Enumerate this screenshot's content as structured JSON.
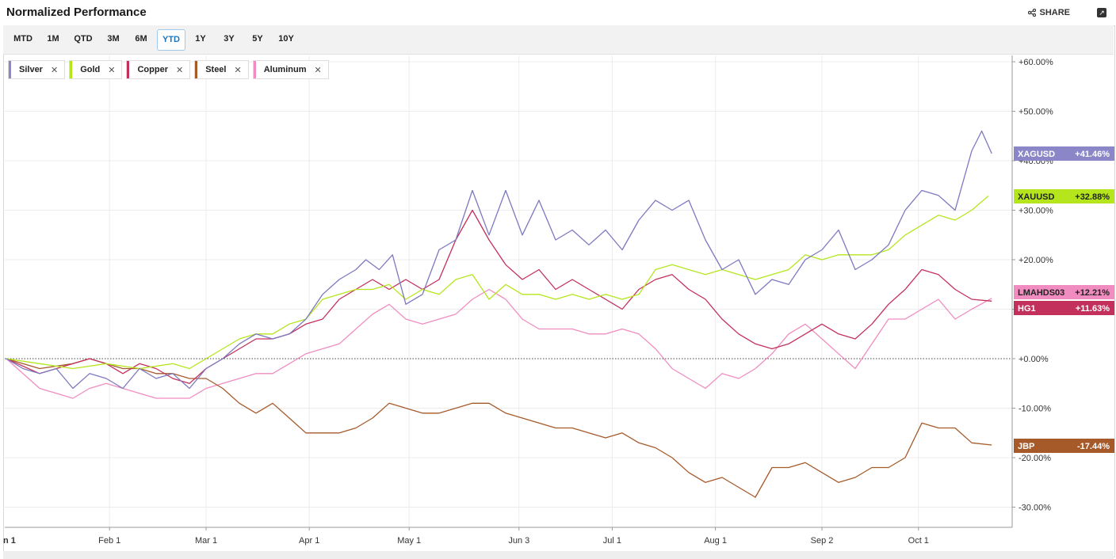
{
  "header": {
    "title": "Normalized Performance",
    "share_label": "SHARE"
  },
  "tabs": [
    {
      "label": "MTD",
      "active": false
    },
    {
      "label": "1M",
      "active": false
    },
    {
      "label": "QTD",
      "active": false
    },
    {
      "label": "3M",
      "active": false
    },
    {
      "label": "6M",
      "active": false
    },
    {
      "label": "YTD",
      "active": true
    },
    {
      "label": "1Y",
      "active": false
    },
    {
      "label": "3Y",
      "active": false
    },
    {
      "label": "5Y",
      "active": false
    },
    {
      "label": "10Y",
      "active": false
    }
  ],
  "legend": [
    {
      "name": "Silver",
      "color": "#8a86c8"
    },
    {
      "name": "Gold",
      "color": "#b5e61d"
    },
    {
      "name": "Copper",
      "color": "#c3305c"
    },
    {
      "name": "Steel",
      "color": "#a65a2a"
    },
    {
      "name": "Aluminum",
      "color": "#f08cc0"
    }
  ],
  "chart_data": {
    "type": "line",
    "y_unit": "%",
    "ylim": [
      -33,
      62
    ],
    "yticks": [
      60,
      50,
      40,
      30,
      20,
      10,
      0,
      -10,
      -20,
      -30
    ],
    "ytick_labels": [
      "+60.00%",
      "+50.00%",
      "+40.00%",
      "+30.00%",
      "+20.00%",
      "+10.00%",
      "+0.00%",
      "-10.00%",
      "-20.00%",
      "-30.00%"
    ],
    "x_tick_labels": [
      "n 1",
      "Feb 1",
      "Mar 1",
      "Apr 1",
      "May 1",
      "Jun 3",
      "Jul 1",
      "Aug 1",
      "Sep 2",
      "Oct 1"
    ],
    "x_tick_days": [
      0,
      31,
      60,
      91,
      121,
      154,
      182,
      213,
      245,
      274
    ],
    "x_end_day": 296,
    "grid": true,
    "series": [
      {
        "name": "Silver",
        "ticker": "XAGUSD",
        "end_label": "+41.46%",
        "color": "#8a86c8",
        "line_color": "#7c78c0",
        "points": [
          [
            0,
            0
          ],
          [
            5,
            -2
          ],
          [
            10,
            -3
          ],
          [
            15,
            -2
          ],
          [
            20,
            -6
          ],
          [
            25,
            -3
          ],
          [
            30,
            -4
          ],
          [
            35,
            -6
          ],
          [
            40,
            -2
          ],
          [
            45,
            -4
          ],
          [
            50,
            -3
          ],
          [
            55,
            -6
          ],
          [
            60,
            -2
          ],
          [
            65,
            0
          ],
          [
            70,
            3
          ],
          [
            75,
            5
          ],
          [
            80,
            4
          ],
          [
            85,
            5
          ],
          [
            90,
            8
          ],
          [
            95,
            13
          ],
          [
            100,
            16
          ],
          [
            105,
            18
          ],
          [
            108,
            20
          ],
          [
            112,
            18
          ],
          [
            116,
            21
          ],
          [
            120,
            11
          ],
          [
            125,
            13
          ],
          [
            130,
            22
          ],
          [
            135,
            24
          ],
          [
            140,
            34
          ],
          [
            145,
            25
          ],
          [
            150,
            34
          ],
          [
            155,
            25
          ],
          [
            160,
            32
          ],
          [
            165,
            24
          ],
          [
            170,
            26
          ],
          [
            175,
            23
          ],
          [
            180,
            26
          ],
          [
            185,
            22
          ],
          [
            190,
            28
          ],
          [
            195,
            32
          ],
          [
            200,
            30
          ],
          [
            205,
            32
          ],
          [
            210,
            24
          ],
          [
            215,
            18
          ],
          [
            220,
            20
          ],
          [
            225,
            13
          ],
          [
            230,
            16
          ],
          [
            235,
            15
          ],
          [
            240,
            20
          ],
          [
            245,
            22
          ],
          [
            250,
            26
          ],
          [
            255,
            18
          ],
          [
            260,
            20
          ],
          [
            265,
            23
          ],
          [
            270,
            30
          ],
          [
            275,
            34
          ],
          [
            280,
            33
          ],
          [
            285,
            30
          ],
          [
            290,
            42
          ],
          [
            293,
            46
          ],
          [
            296,
            41.46
          ]
        ]
      },
      {
        "name": "Gold",
        "ticker": "XAUUSD",
        "end_label": "+32.88%",
        "color": "#b5e61d",
        "line_color": "#b5e61d",
        "points": [
          [
            0,
            0
          ],
          [
            10,
            -1
          ],
          [
            20,
            -2
          ],
          [
            30,
            -1
          ],
          [
            40,
            -2
          ],
          [
            50,
            -1
          ],
          [
            55,
            -2
          ],
          [
            60,
            0
          ],
          [
            65,
            2
          ],
          [
            70,
            4
          ],
          [
            75,
            5
          ],
          [
            80,
            5
          ],
          [
            85,
            7
          ],
          [
            90,
            8
          ],
          [
            95,
            12
          ],
          [
            100,
            13
          ],
          [
            105,
            14
          ],
          [
            110,
            14
          ],
          [
            115,
            15
          ],
          [
            120,
            12
          ],
          [
            125,
            14
          ],
          [
            130,
            13
          ],
          [
            135,
            16
          ],
          [
            140,
            17
          ],
          [
            145,
            12
          ],
          [
            150,
            15
          ],
          [
            155,
            13
          ],
          [
            160,
            13
          ],
          [
            165,
            12
          ],
          [
            170,
            13
          ],
          [
            175,
            12
          ],
          [
            180,
            13
          ],
          [
            185,
            12
          ],
          [
            190,
            13
          ],
          [
            195,
            18
          ],
          [
            200,
            19
          ],
          [
            205,
            18
          ],
          [
            210,
            17
          ],
          [
            215,
            18
          ],
          [
            220,
            17
          ],
          [
            225,
            16
          ],
          [
            230,
            17
          ],
          [
            235,
            18
          ],
          [
            240,
            21
          ],
          [
            245,
            20
          ],
          [
            250,
            21
          ],
          [
            255,
            21
          ],
          [
            260,
            21
          ],
          [
            265,
            22
          ],
          [
            270,
            25
          ],
          [
            275,
            27
          ],
          [
            280,
            29
          ],
          [
            285,
            28
          ],
          [
            290,
            30
          ],
          [
            295,
            32.88
          ]
        ]
      },
      {
        "name": "Copper",
        "ticker": "HG1",
        "end_label": "+11.63%",
        "color": "#c3305c",
        "line_color": "#c3305c",
        "points": [
          [
            0,
            0
          ],
          [
            10,
            -3
          ],
          [
            20,
            -1
          ],
          [
            25,
            0
          ],
          [
            30,
            -1
          ],
          [
            35,
            -3
          ],
          [
            40,
            -1
          ],
          [
            45,
            -2
          ],
          [
            50,
            -4
          ],
          [
            55,
            -5
          ],
          [
            60,
            -2
          ],
          [
            65,
            0
          ],
          [
            70,
            2
          ],
          [
            75,
            4
          ],
          [
            80,
            4
          ],
          [
            85,
            5
          ],
          [
            90,
            7
          ],
          [
            95,
            8
          ],
          [
            100,
            12
          ],
          [
            105,
            14
          ],
          [
            110,
            16
          ],
          [
            115,
            14
          ],
          [
            120,
            16
          ],
          [
            125,
            14
          ],
          [
            130,
            16
          ],
          [
            135,
            24
          ],
          [
            140,
            30
          ],
          [
            145,
            24
          ],
          [
            150,
            19
          ],
          [
            155,
            16
          ],
          [
            160,
            18
          ],
          [
            165,
            14
          ],
          [
            170,
            16
          ],
          [
            175,
            14
          ],
          [
            180,
            12
          ],
          [
            185,
            10
          ],
          [
            190,
            14
          ],
          [
            195,
            16
          ],
          [
            200,
            17
          ],
          [
            205,
            14
          ],
          [
            210,
            12
          ],
          [
            215,
            8
          ],
          [
            220,
            5
          ],
          [
            225,
            3
          ],
          [
            230,
            2
          ],
          [
            235,
            3
          ],
          [
            240,
            5
          ],
          [
            245,
            7
          ],
          [
            250,
            5
          ],
          [
            255,
            4
          ],
          [
            260,
            7
          ],
          [
            265,
            11
          ],
          [
            270,
            14
          ],
          [
            275,
            18
          ],
          [
            280,
            17
          ],
          [
            285,
            14
          ],
          [
            290,
            12
          ],
          [
            296,
            11.63
          ]
        ]
      },
      {
        "name": "Steel",
        "ticker": "JBP",
        "end_label": "-17.44%",
        "color": "#a65a2a",
        "line_color": "#a65a2a",
        "points": [
          [
            0,
            0
          ],
          [
            10,
            -2
          ],
          [
            20,
            -1
          ],
          [
            25,
            0
          ],
          [
            30,
            -1
          ],
          [
            35,
            -2
          ],
          [
            40,
            -2
          ],
          [
            45,
            -3
          ],
          [
            50,
            -3
          ],
          [
            55,
            -4
          ],
          [
            60,
            -4
          ],
          [
            65,
            -6
          ],
          [
            70,
            -9
          ],
          [
            75,
            -11
          ],
          [
            80,
            -9
          ],
          [
            85,
            -12
          ],
          [
            90,
            -15
          ],
          [
            95,
            -15
          ],
          [
            100,
            -15
          ],
          [
            105,
            -14
          ],
          [
            110,
            -12
          ],
          [
            115,
            -9
          ],
          [
            120,
            -10
          ],
          [
            125,
            -11
          ],
          [
            130,
            -11
          ],
          [
            135,
            -10
          ],
          [
            140,
            -9
          ],
          [
            145,
            -9
          ],
          [
            150,
            -11
          ],
          [
            155,
            -12
          ],
          [
            160,
            -13
          ],
          [
            165,
            -14
          ],
          [
            170,
            -14
          ],
          [
            175,
            -15
          ],
          [
            180,
            -16
          ],
          [
            185,
            -15
          ],
          [
            190,
            -17
          ],
          [
            195,
            -18
          ],
          [
            200,
            -20
          ],
          [
            205,
            -23
          ],
          [
            210,
            -25
          ],
          [
            215,
            -24
          ],
          [
            220,
            -26
          ],
          [
            225,
            -28
          ],
          [
            230,
            -22
          ],
          [
            235,
            -22
          ],
          [
            240,
            -21
          ],
          [
            245,
            -23
          ],
          [
            250,
            -25
          ],
          [
            255,
            -24
          ],
          [
            260,
            -22
          ],
          [
            265,
            -22
          ],
          [
            270,
            -20
          ],
          [
            275,
            -13
          ],
          [
            280,
            -14
          ],
          [
            285,
            -14
          ],
          [
            290,
            -17
          ],
          [
            296,
            -17.44
          ]
        ]
      },
      {
        "name": "Aluminum",
        "ticker": "LMAHDS03",
        "end_label": "+12.21%",
        "color": "#f08cc0",
        "line_color": "#f08cc0",
        "points": [
          [
            0,
            0
          ],
          [
            10,
            -6
          ],
          [
            20,
            -8
          ],
          [
            25,
            -6
          ],
          [
            30,
            -5
          ],
          [
            35,
            -6
          ],
          [
            40,
            -7
          ],
          [
            45,
            -8
          ],
          [
            50,
            -8
          ],
          [
            55,
            -8
          ],
          [
            60,
            -6
          ],
          [
            65,
            -5
          ],
          [
            70,
            -4
          ],
          [
            75,
            -3
          ],
          [
            80,
            -3
          ],
          [
            85,
            -1
          ],
          [
            90,
            1
          ],
          [
            95,
            2
          ],
          [
            100,
            3
          ],
          [
            105,
            6
          ],
          [
            110,
            9
          ],
          [
            115,
            11
          ],
          [
            120,
            8
          ],
          [
            125,
            7
          ],
          [
            130,
            8
          ],
          [
            135,
            9
          ],
          [
            140,
            12
          ],
          [
            145,
            14
          ],
          [
            150,
            12
          ],
          [
            155,
            8
          ],
          [
            160,
            6
          ],
          [
            165,
            6
          ],
          [
            170,
            6
          ],
          [
            175,
            5
          ],
          [
            180,
            5
          ],
          [
            185,
            6
          ],
          [
            190,
            5
          ],
          [
            195,
            2
          ],
          [
            200,
            -2
          ],
          [
            205,
            -4
          ],
          [
            210,
            -6
          ],
          [
            215,
            -3
          ],
          [
            220,
            -4
          ],
          [
            225,
            -2
          ],
          [
            230,
            1
          ],
          [
            235,
            5
          ],
          [
            240,
            7
          ],
          [
            245,
            4
          ],
          [
            250,
            1
          ],
          [
            255,
            -2
          ],
          [
            260,
            3
          ],
          [
            265,
            8
          ],
          [
            270,
            8
          ],
          [
            275,
            10
          ],
          [
            280,
            12
          ],
          [
            285,
            8
          ],
          [
            290,
            10
          ],
          [
            296,
            12.21
          ]
        ]
      }
    ]
  }
}
